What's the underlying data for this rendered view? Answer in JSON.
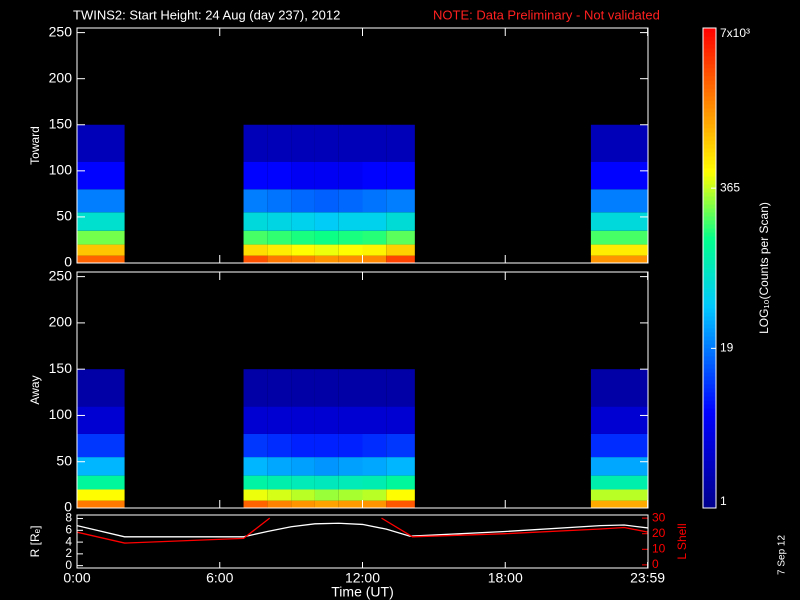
{
  "title": "TWINS2: Start Height: 24 Aug (day 237), 2012",
  "note": "NOTE: Data Preliminary - Not validated",
  "side_text": "7 Sep 12",
  "chart_data": [
    {
      "type": "heatmap",
      "ylabel": "Toward",
      "xlim": [
        0,
        24
      ],
      "ylim": [
        0,
        255
      ],
      "yticks": [
        0,
        50,
        100,
        150,
        200,
        250
      ],
      "time_edges": [
        0,
        2,
        7,
        8,
        9,
        10,
        11,
        12,
        13,
        14.2,
        21.6,
        24
      ],
      "energy_edges": [
        0,
        8,
        20,
        35,
        55,
        80,
        110,
        150
      ],
      "counts": [
        [
          2500,
          900,
          250,
          70,
          20,
          6,
          2
        ],
        null,
        [
          3000,
          700,
          200,
          60,
          20,
          6,
          2
        ],
        [
          2000,
          600,
          180,
          55,
          18,
          6,
          2
        ],
        [
          1800,
          500,
          160,
          50,
          16,
          5,
          2
        ],
        [
          1500,
          450,
          150,
          45,
          15,
          5,
          2
        ],
        [
          1600,
          500,
          160,
          50,
          16,
          5,
          2
        ],
        [
          1700,
          550,
          170,
          50,
          18,
          6,
          2
        ],
        [
          3500,
          800,
          220,
          65,
          20,
          6,
          2
        ],
        null,
        [
          1500,
          600,
          200,
          60,
          20,
          6,
          2
        ]
      ],
      "colorbar": {
        "label": "LOG₁₀(Counts per Scan)",
        "scale": "log",
        "lim": [
          1,
          7000
        ],
        "ticks": [
          1,
          19,
          365,
          {
            "value": 7000,
            "label": "7x10³"
          }
        ]
      }
    },
    {
      "type": "heatmap",
      "ylabel": "Away",
      "xlim": [
        0,
        24
      ],
      "ylim": [
        0,
        255
      ],
      "yticks": [
        0,
        50,
        100,
        150,
        200,
        250
      ],
      "time_edges": [
        0,
        2,
        7,
        8,
        9,
        10,
        11,
        12,
        13,
        14.2,
        21.6,
        24
      ],
      "energy_edges": [
        0,
        8,
        20,
        35,
        55,
        80,
        110,
        150
      ],
      "counts": [
        [
          2000,
          500,
          120,
          35,
          10,
          3,
          1.5
        ],
        null,
        [
          2500,
          450,
          110,
          35,
          10,
          3,
          1.5
        ],
        [
          1800,
          400,
          100,
          30,
          9,
          3,
          1.5
        ],
        [
          1500,
          350,
          90,
          28,
          8,
          3,
          1.5
        ],
        [
          1300,
          300,
          85,
          25,
          8,
          3,
          1.5
        ],
        [
          1400,
          320,
          90,
          28,
          8,
          3,
          1.5
        ],
        [
          1500,
          350,
          95,
          30,
          9,
          3,
          1.5
        ],
        [
          2800,
          500,
          120,
          35,
          10,
          3,
          1.5
        ],
        null,
        [
          1200,
          350,
          100,
          30,
          9,
          3,
          1.5
        ]
      ]
    },
    {
      "type": "line",
      "ylabel": "R [Rₑ]",
      "y2label": "L Shell",
      "xlabel": "Time (UT)",
      "xlim": [
        0,
        24
      ],
      "xticks": [
        {
          "value": 0,
          "label": "0:00"
        },
        {
          "value": 6,
          "label": "6:00"
        },
        {
          "value": 12,
          "label": "12:00"
        },
        {
          "value": 18,
          "label": "18:00"
        },
        {
          "value": 23.983,
          "label": "23:59"
        }
      ],
      "ylim": [
        -0.4,
        8.6
      ],
      "yticks": [
        0,
        2,
        4,
        6,
        8
      ],
      "y2lim": [
        -2,
        32
      ],
      "y2ticks": [
        0,
        10,
        20,
        30
      ],
      "series": [
        {
          "color": "#ffffff",
          "x": [
            0,
            2,
            7,
            8,
            9,
            10,
            11,
            12,
            13,
            14,
            18,
            22,
            23,
            24
          ],
          "values": [
            6.8,
            4.9,
            4.9,
            5.8,
            6.6,
            7.1,
            7.2,
            7.0,
            6.2,
            5.0,
            5.8,
            6.8,
            6.9,
            6.4
          ]
        },
        {
          "color": "#ff0000",
          "axis": "y2",
          "x": [
            0,
            2,
            7,
            8.1,
            10,
            12.8,
            14.1,
            18,
            22,
            23,
            24
          ],
          "values": [
            21,
            14,
            17,
            30,
            null,
            30,
            18,
            20,
            23,
            24,
            21
          ]
        }
      ]
    }
  ]
}
